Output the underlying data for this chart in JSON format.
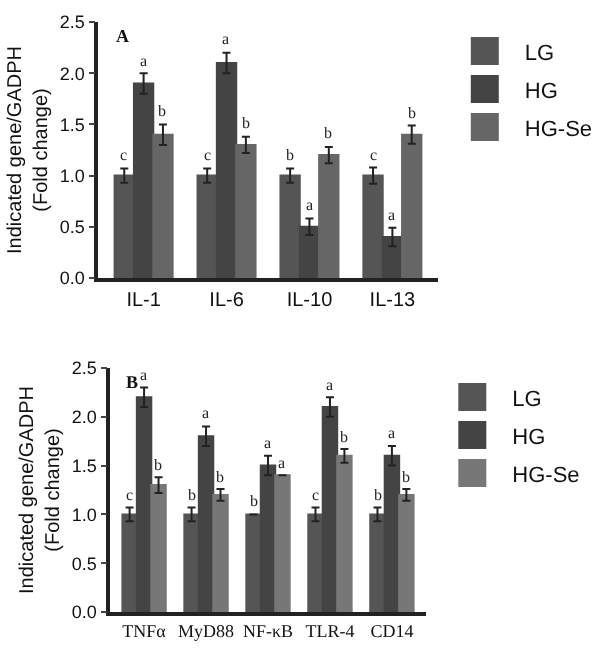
{
  "chart_data": [
    {
      "type": "bar",
      "title": "A",
      "ylabel": "Indicated gene/GADPH\n(Fold change)",
      "categories": [
        "IL-1",
        "IL-6",
        "IL-10",
        "IL-13"
      ],
      "ylim": [
        0,
        2.5
      ],
      "yticks": [
        {
          "value": 0,
          "label": "0.0"
        },
        0.5,
        {
          "value": 1,
          "label": "1.0"
        },
        1.5,
        {
          "value": 2,
          "label": "2.0"
        },
        2.5
      ],
      "legend": "top right",
      "series": [
        {
          "name": "LG",
          "color": "#555555",
          "values": [
            1.0,
            1.0,
            1.0,
            1.0
          ],
          "errors": [
            0.07,
            0.07,
            0.07,
            0.08
          ],
          "value_labels": [
            "c",
            "c",
            "b",
            "c"
          ]
        },
        {
          "name": "HG",
          "color": "#444444",
          "values": [
            1.9,
            2.1,
            0.5,
            0.4
          ],
          "errors": [
            0.1,
            0.1,
            0.08,
            0.09
          ],
          "value_labels": [
            "a",
            "a",
            "a",
            "a"
          ]
        },
        {
          "name": "HG-Se",
          "color": "#666666",
          "values": [
            1.4,
            1.3,
            1.2,
            1.4
          ],
          "errors": [
            0.1,
            0.08,
            0.08,
            0.09
          ],
          "value_labels": [
            "b",
            "b",
            "b",
            "b"
          ]
        }
      ]
    },
    {
      "type": "bar",
      "title": "B",
      "ylabel": "Indicated gene/GADPH\n(Fold change)",
      "categories": [
        "TNFα",
        "MyD88",
        "NF-κB",
        "TLR-4",
        "CD14"
      ],
      "ylim": [
        0,
        2.5
      ],
      "yticks": [
        {
          "value": 0,
          "label": "0.0"
        },
        0.5,
        {
          "value": 1,
          "label": "1.0"
        },
        1.5,
        {
          "value": 2,
          "label": "2.0"
        },
        2.5
      ],
      "legend": "top right",
      "series": [
        {
          "name": "LG",
          "color": "#555555",
          "values": [
            1.0,
            1.0,
            1.0,
            1.0,
            1.0
          ],
          "errors": [
            0.07,
            0.07,
            null,
            0.07,
            0.07
          ],
          "value_labels": [
            "c",
            "b",
            "b",
            "c",
            "b"
          ]
        },
        {
          "name": "HG",
          "color": "#444444",
          "values": [
            2.2,
            1.8,
            1.5,
            2.1,
            1.6
          ],
          "errors": [
            0.1,
            0.1,
            0.1,
            0.1,
            0.1
          ],
          "value_labels": [
            "a",
            "a",
            "a",
            "a",
            "a"
          ]
        },
        {
          "name": "HG-Se",
          "color": "#777777",
          "values": [
            1.3,
            1.2,
            1.4,
            1.6,
            1.2
          ],
          "errors": [
            0.08,
            0.06,
            null,
            0.07,
            0.06
          ],
          "value_labels": [
            "b",
            "b",
            "a",
            "b",
            "b"
          ]
        }
      ]
    }
  ]
}
